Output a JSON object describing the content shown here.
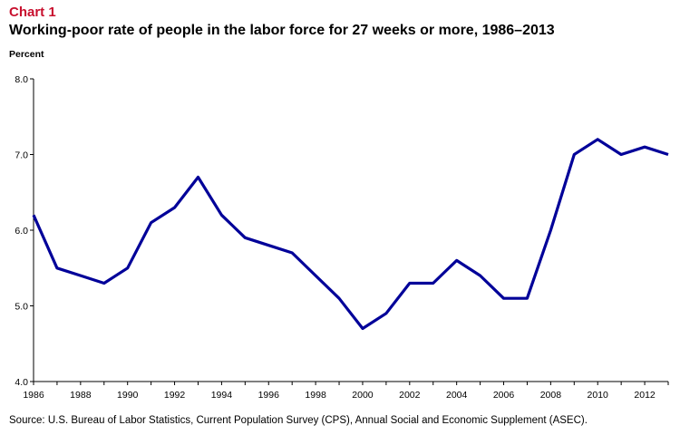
{
  "header": {
    "label": "Chart 1",
    "title": "Working-poor rate of people in the labor force for 27 weeks or more, 1986–2013"
  },
  "footer": {
    "source": "Source: U.S. Bureau of Labor Statistics, Current Population Survey (CPS), Annual Social and Economic Supplement (ASEC)."
  },
  "chart_data": {
    "type": "line",
    "title": "Working-poor rate of people in the labor force for 27 weeks or more, 1986–2013",
    "xlabel": "",
    "ylabel": "Percent",
    "x": [
      1986,
      1987,
      1988,
      1989,
      1990,
      1991,
      1992,
      1993,
      1994,
      1995,
      1996,
      1997,
      1998,
      1999,
      2000,
      2001,
      2002,
      2003,
      2004,
      2005,
      2006,
      2007,
      2008,
      2009,
      2010,
      2011,
      2012,
      2013
    ],
    "series": [
      {
        "name": "Working-poor rate",
        "values": [
          6.2,
          5.5,
          5.4,
          5.3,
          5.5,
          6.1,
          6.3,
          6.7,
          6.2,
          5.9,
          5.8,
          5.7,
          5.4,
          5.1,
          4.7,
          4.9,
          5.3,
          5.3,
          5.6,
          5.4,
          5.1,
          5.1,
          6.0,
          7.0,
          7.2,
          7.0,
          7.1,
          7.0
        ]
      }
    ],
    "xlim": [
      1986,
      2013
    ],
    "ylim": [
      4.0,
      8.0
    ],
    "xticks": [
      "1986",
      "1988",
      "1990",
      "1992",
      "1994",
      "1996",
      "1998",
      "2000",
      "2002",
      "2004",
      "2006",
      "2008",
      "2010",
      "2012"
    ],
    "yticks": [
      "4.0",
      "5.0",
      "6.0",
      "7.0",
      "8.0"
    ],
    "line_color": "#000099",
    "grid": false
  }
}
